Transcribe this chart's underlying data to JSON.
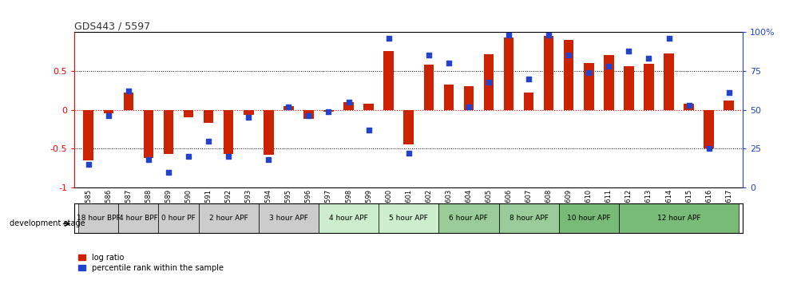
{
  "title": "GDS443 / 5597",
  "samples": [
    "GSM4585",
    "GSM4586",
    "GSM4587",
    "GSM4588",
    "GSM4589",
    "GSM4590",
    "GSM4591",
    "GSM4592",
    "GSM4593",
    "GSM4594",
    "GSM4595",
    "GSM4596",
    "GSM4597",
    "GSM4598",
    "GSM4599",
    "GSM4600",
    "GSM4601",
    "GSM4602",
    "GSM4603",
    "GSM4604",
    "GSM4605",
    "GSM4606",
    "GSM4607",
    "GSM4608",
    "GSM4609",
    "GSM4610",
    "GSM4611",
    "GSM4612",
    "GSM4613",
    "GSM4614",
    "GSM4615",
    "GSM4616",
    "GSM4617"
  ],
  "log_ratio": [
    -0.65,
    -0.04,
    0.22,
    -0.62,
    -0.57,
    -0.1,
    -0.17,
    -0.57,
    -0.06,
    -0.58,
    0.05,
    -0.12,
    -0.02,
    0.1,
    0.08,
    0.76,
    -0.44,
    0.58,
    0.33,
    0.3,
    0.72,
    0.93,
    0.22,
    0.95,
    0.9,
    0.6,
    0.7,
    0.56,
    0.59,
    0.73,
    0.08,
    -0.5,
    0.12
  ],
  "percentile": [
    15,
    46,
    62,
    18,
    10,
    20,
    30,
    20,
    45,
    18,
    52,
    46,
    49,
    55,
    37,
    96,
    22,
    85,
    80,
    52,
    68,
    98,
    70,
    98,
    85,
    74,
    78,
    88,
    83,
    96,
    53,
    25,
    61
  ],
  "stage_groups": [
    {
      "label": "18 hour BPF",
      "start": 0,
      "end": 2,
      "color": "#cccccc"
    },
    {
      "label": "4 hour BPF",
      "start": 2,
      "end": 4,
      "color": "#cccccc"
    },
    {
      "label": "0 hour PF",
      "start": 4,
      "end": 6,
      "color": "#cccccc"
    },
    {
      "label": "2 hour APF",
      "start": 6,
      "end": 9,
      "color": "#cccccc"
    },
    {
      "label": "3 hour APF",
      "start": 9,
      "end": 12,
      "color": "#cccccc"
    },
    {
      "label": "4 hour APF",
      "start": 12,
      "end": 15,
      "color": "#cceecc"
    },
    {
      "label": "5 hour APF",
      "start": 15,
      "end": 18,
      "color": "#cceecc"
    },
    {
      "label": "6 hour APF",
      "start": 18,
      "end": 21,
      "color": "#99cc99"
    },
    {
      "label": "8 hour APF",
      "start": 21,
      "end": 24,
      "color": "#99cc99"
    },
    {
      "label": "10 hour APF",
      "start": 24,
      "end": 27,
      "color": "#77bb77"
    },
    {
      "label": "12 hour APF",
      "start": 27,
      "end": 33,
      "color": "#77bb77"
    }
  ],
  "bar_color": "#cc2200",
  "dot_color": "#2244cc",
  "ylim": [
    -1.0,
    1.0
  ],
  "y2lim": [
    0,
    100
  ],
  "yticks_left": [
    -1.0,
    -0.5,
    0.0,
    0.5
  ],
  "yticks_right": [
    0,
    25,
    50,
    75,
    100
  ],
  "bar_width": 0.5,
  "legend_log_ratio": "log ratio",
  "legend_percentile": "percentile rank within the sample",
  "dev_stage_label": "development stage"
}
